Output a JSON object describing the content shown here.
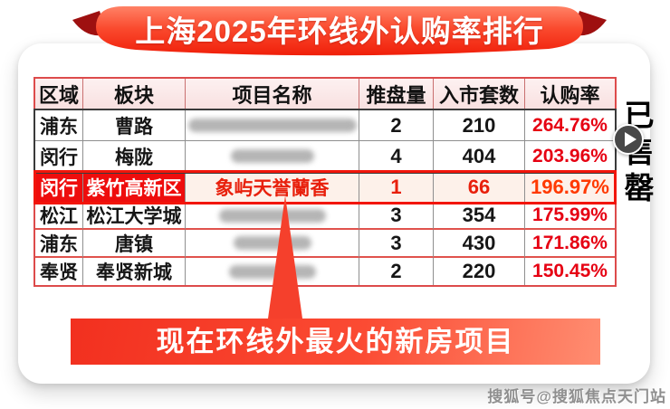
{
  "banner": {
    "title": "上海2025年环线外认购率排行"
  },
  "callout": {
    "text": "现在环线外最火的新房项目"
  },
  "side_label": {
    "text": "已售罄"
  },
  "watermark": {
    "text": "搜狐号@搜狐焦点天门站"
  },
  "colors": {
    "ribbon_red": "#f2220d",
    "ribbon_fold": "#9e1010",
    "header_bg": "#fbe7e7",
    "table_border": "#dd4b4b",
    "highlight_bg": "#ee0d0d",
    "highlight_text": "#e8200c",
    "rate_red": "#e60012",
    "highlight_rate": "#ff3900"
  },
  "table": {
    "headers": [
      "区域",
      "板块",
      "项目名称",
      "推盘量",
      "入市套数",
      "认购率"
    ],
    "rows": [
      {
        "region": "浦东",
        "block": "曹路",
        "project": "",
        "redacted": true,
        "launches": "2",
        "units": "210",
        "rate": "264.76%",
        "highlight": false
      },
      {
        "region": "闵行",
        "block": "梅陇",
        "project": "",
        "redacted": true,
        "launches": "4",
        "units": "404",
        "rate": "203.96%",
        "highlight": false
      },
      {
        "region": "闵行",
        "block": "紫竹高新区",
        "project": "象屿天誉蘭香",
        "redacted": false,
        "launches": "1",
        "units": "66",
        "rate": "196.97%",
        "highlight": true
      },
      {
        "region": "松江",
        "block": "松江大学城",
        "project": "",
        "redacted": true,
        "launches": "3",
        "units": "354",
        "rate": "175.99%",
        "highlight": false
      },
      {
        "region": "浦东",
        "block": "唐镇",
        "project": "",
        "redacted": true,
        "launches": "3",
        "units": "430",
        "rate": "171.86%",
        "highlight": false
      },
      {
        "region": "奉贤",
        "block": "奉贤新城",
        "project": "",
        "redacted": true,
        "launches": "2",
        "units": "220",
        "rate": "150.45%",
        "highlight": false
      }
    ]
  },
  "chart_data": {
    "type": "table",
    "title": "上海2025年环线外认购率排行",
    "columns": [
      "区域",
      "板块",
      "项目名称",
      "推盘量",
      "入市套数",
      "认购率"
    ],
    "rows": [
      [
        "浦东",
        "曹路",
        "(已打码)",
        2,
        210,
        "264.76%"
      ],
      [
        "闵行",
        "梅陇",
        "(已打码)",
        4,
        404,
        "203.96%"
      ],
      [
        "闵行",
        "紫竹高新区",
        "象屿天誉蘭香",
        1,
        66,
        "196.97%"
      ],
      [
        "松江",
        "松江大学城",
        "(已打码)",
        3,
        354,
        "175.99%"
      ],
      [
        "浦东",
        "唐镇",
        "(已打码)",
        3,
        430,
        "171.86%"
      ],
      [
        "奉贤",
        "奉贤新城",
        "(已打码)",
        2,
        220,
        "150.45%"
      ]
    ],
    "annotations": [
      "已售罄",
      "现在环线外最火的新房项目"
    ]
  }
}
